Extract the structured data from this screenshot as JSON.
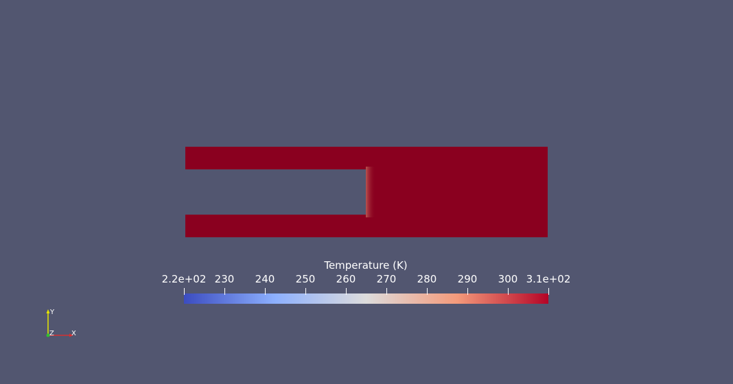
{
  "scene": {
    "background_color": "#525670",
    "field_color": "#8a001f",
    "inlet_fade_color": "#c0564f"
  },
  "legend": {
    "title": "Temperature (K)",
    "ticks": [
      "2.2e+02",
      "230",
      "240",
      "250",
      "260",
      "270",
      "280",
      "290",
      "300",
      "3.1e+02"
    ],
    "tick_values": [
      220,
      230,
      240,
      250,
      260,
      270,
      280,
      290,
      300,
      310
    ],
    "range": [
      220,
      310
    ],
    "colormap": [
      "#3b4cc0",
      "#8db0fe",
      "#dddcdc",
      "#f49a7b",
      "#b40426"
    ]
  },
  "axes": {
    "y_label": "Y",
    "z_label": "Z",
    "x_label": "X",
    "x_color": "#d43030",
    "y_color": "#e6e600",
    "z_color": "#30c030"
  }
}
